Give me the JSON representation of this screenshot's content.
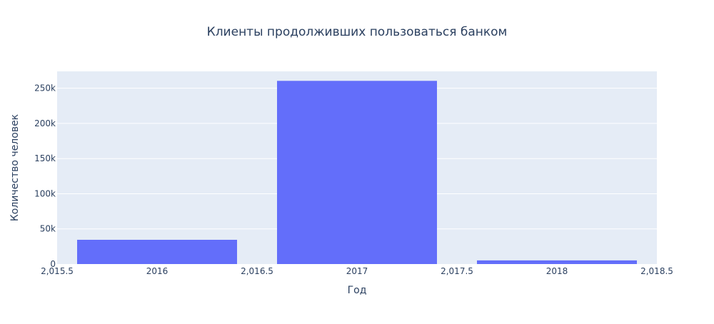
{
  "chart_data": {
    "type": "bar",
    "title": "Клиенты продолживших пользоваться банком",
    "xlabel": "Год",
    "ylabel": "Количество человек",
    "categories": [
      2016,
      2017,
      2018
    ],
    "values": [
      34500,
      260500,
      5200
    ],
    "bar_width": 0.8,
    "xlim": [
      2015.5,
      2018.5
    ],
    "ylim": [
      0,
      274000
    ],
    "x_tick_values": [
      2015.5,
      2016,
      2016.5,
      2017,
      2017.5,
      2018,
      2018.5
    ],
    "x_tick_labels": [
      "2,015.5",
      "2016",
      "2,016.5",
      "2017",
      "2,017.5",
      "2018",
      "2,018.5"
    ],
    "y_tick_values": [
      0,
      50000,
      100000,
      150000,
      200000,
      250000
    ],
    "y_tick_labels": [
      "0",
      "50k",
      "100k",
      "150k",
      "200k",
      "250k"
    ],
    "grid": true,
    "legend": "none",
    "colors": {
      "bar": "#636efa",
      "plot_bg": "#e5ecf6",
      "grid": "#ffffff",
      "text": "#2a3f5f",
      "tick_text": "#2a3f5f"
    }
  }
}
